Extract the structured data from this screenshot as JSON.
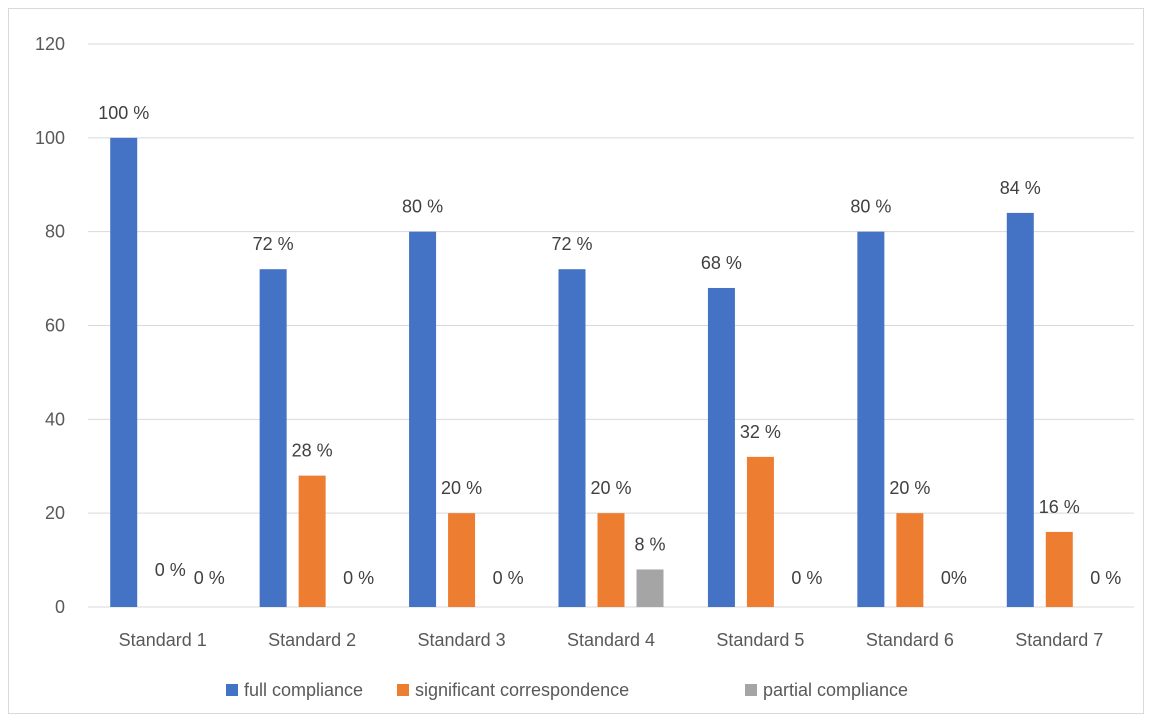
{
  "chart_data": {
    "type": "bar",
    "categories": [
      "Standard 1",
      "Standard 2",
      "Standard 3",
      "Standard 4",
      "Standard 5",
      "Standard 6",
      "Standard 7"
    ],
    "series": [
      {
        "name": "full compliance",
        "color": "#4472C4",
        "values": [
          100,
          72,
          80,
          72,
          68,
          80,
          84
        ],
        "labels": [
          "100 %",
          "72 %",
          "80 %",
          "72 %",
          "68 %",
          "80 %",
          "84 %"
        ]
      },
      {
        "name": "significant correspondence",
        "color": "#ED7D31",
        "values": [
          0,
          28,
          20,
          20,
          32,
          20,
          16
        ],
        "labels": [
          "0 %",
          "28 %",
          "20 %",
          "20 %",
          "32 %",
          "20 %",
          "16 %"
        ]
      },
      {
        "name": "partial compliance",
        "color": "#A5A5A5",
        "values": [
          0,
          0,
          0,
          8,
          0,
          0,
          0
        ],
        "labels": [
          "0 %",
          "0 %",
          "0 %",
          "8 %",
          "0 %",
          "0%",
          "0 %"
        ]
      }
    ],
    "ylim": [
      0,
      120
    ],
    "yticks": [
      "0",
      "20",
      "40",
      "60",
      "80",
      "100",
      "120"
    ],
    "grid": true,
    "legend_position": "bottom",
    "gridline_color": "#d9d9d9"
  }
}
